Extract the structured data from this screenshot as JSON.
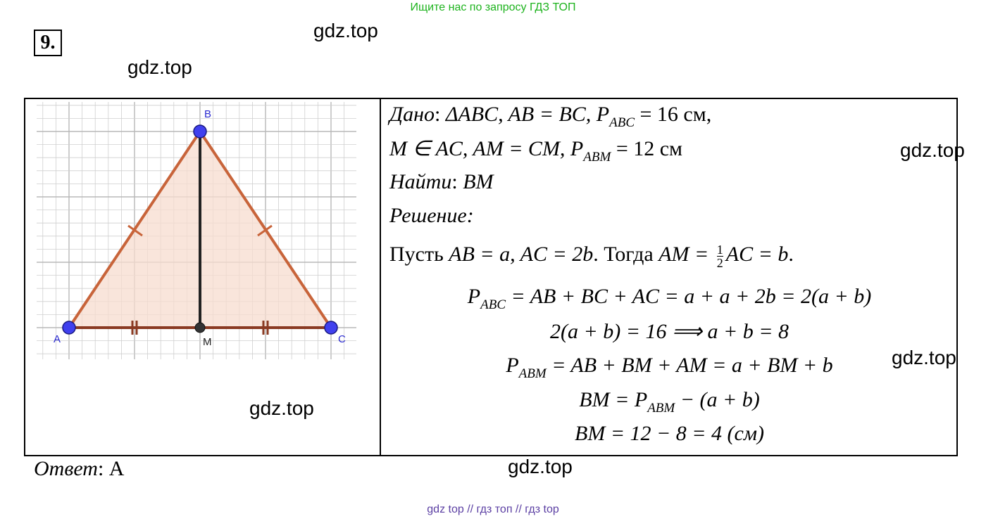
{
  "banner": "Ищите нас по запросу ГДЗ ТОП",
  "problem_number": "9",
  "problem_number_dot": ".",
  "watermarks": [
    "gdz.top",
    "gdz.top",
    "gdz.top",
    "gdz.top",
    "gdz.top",
    "gdz.top"
  ],
  "figure": {
    "labels": {
      "A": "A",
      "B": "B",
      "C": "C",
      "M": "M"
    },
    "colors": {
      "triangle_stroke": "#c8643a",
      "triangle_fill": "#f7dccf",
      "points": "#3a3af0",
      "median": "#222222",
      "grid": "#cfcfcf"
    }
  },
  "solution": {
    "given_label": "Дано",
    "given_1": "ΔABC, AB = BC, P",
    "given_1_sub": "ABC",
    "given_1_end": " = 16 см,",
    "given_2": "M ∈ AC, AM = CM, P",
    "given_2_sub": "ABM",
    "given_2_end": " = 12 см",
    "find_label": "Найти",
    "find_value": "BM",
    "solution_label": "Решение",
    "let_1": "Пусть ",
    "let_2": "AB = a, AC = 2b",
    "let_3": ". Тогда ",
    "let_4": "AM = ",
    "frac_num": "1",
    "frac_den": "2",
    "let_5": "AC = b",
    "let_6": ".",
    "eq1_p": "P",
    "eq1_sub": "ABC",
    "eq1_rest": " = AB + BC + AC = a + a + 2b = 2(a + b)",
    "eq2": "2(a + b) = 16  ⟹ a + b = 8",
    "eq3_p": "P",
    "eq3_sub": "ABM",
    "eq3_rest": " = AB + BM + AM = a + BM + b",
    "eq4_start": "BM = P",
    "eq4_sub": "ABM",
    "eq4_rest": " − (a + b)",
    "eq5": "BM = 12 − 8 = 4 (см)"
  },
  "answer": {
    "label": "Ответ",
    "value": "A"
  },
  "footer": "gdz top  //  гдз топ  //  гдз top"
}
